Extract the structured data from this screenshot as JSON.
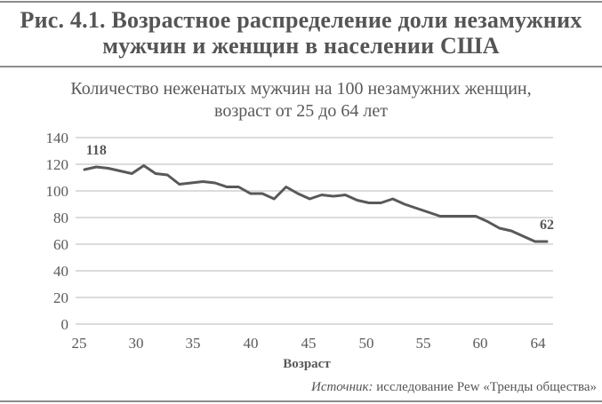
{
  "figure": {
    "title_line1": "Рис. 4.1. Возрастное распределение доли незамужних",
    "title_line2": "мужчин и женщин в населении США",
    "source_label": "Источник:",
    "source_text": " исследование Pew «Тренды общества»"
  },
  "colors": {
    "line": "#595959",
    "grid": "#c8c8c8",
    "text": "#555555",
    "rule": "#8c8c8c"
  },
  "chart_data": {
    "type": "line",
    "title": "Количество неженатых мужчин на 100 незамужних женщин, возраст от 25 до 64 лет",
    "title_line1": "Количество неженатых мужчин на 100 незамужних женщин,",
    "title_line2": "возраст от 25 до 64 лет",
    "xlabel": "Возраст",
    "ylabel": "",
    "ylim": [
      0,
      140
    ],
    "yticks": [
      0,
      20,
      40,
      60,
      80,
      100,
      120,
      140
    ],
    "xtick_labels": [
      "25",
      "30",
      "35",
      "40",
      "45",
      "50",
      "55",
      "60",
      "64"
    ],
    "grid": true,
    "legend": "none",
    "x": [
      25,
      26,
      27,
      28,
      29,
      30,
      31,
      32,
      33,
      34,
      35,
      36,
      37,
      38,
      39,
      40,
      41,
      42,
      43,
      44,
      45,
      46,
      47,
      48,
      49,
      50,
      51,
      52,
      53,
      54,
      55,
      56,
      57,
      58,
      59,
      60,
      61,
      62,
      63,
      64
    ],
    "series": [
      {
        "name": "Неженатые мужчины на 100 незамужних женщин",
        "values": [
          116,
          118,
          117,
          115,
          113,
          119,
          113,
          112,
          105,
          106,
          107,
          106,
          103,
          103,
          98,
          98,
          94,
          103,
          98,
          94,
          97,
          96,
          97,
          93,
          91,
          91,
          94,
          90,
          87,
          84,
          81,
          81,
          81,
          81,
          77,
          72,
          70,
          66,
          62,
          62
        ]
      }
    ],
    "annotations": [
      {
        "x": 26,
        "text": "118"
      },
      {
        "x": 64,
        "text": "62"
      }
    ]
  }
}
